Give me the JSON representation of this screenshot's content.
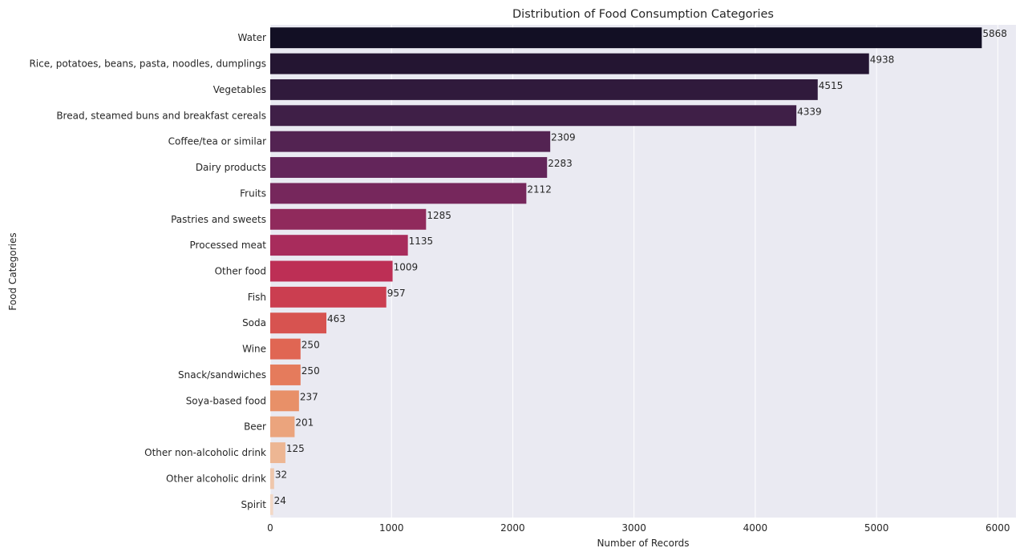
{
  "chart_data": {
    "type": "bar",
    "orientation": "horizontal",
    "title": "Distribution of Food Consumption Categories",
    "xlabel": "Number of Records",
    "ylabel": "Food Categories",
    "xlim": [
      0,
      6150
    ],
    "xticks": [
      0,
      1000,
      2000,
      3000,
      4000,
      5000,
      6000
    ],
    "grid": true,
    "categories": [
      "Water",
      "Rice, potatoes, beans, pasta, noodles, dumplings",
      "Vegetables",
      "Bread, steamed buns and breakfast cereals",
      "Coffee/tea or similar",
      "Dairy products",
      "Fruits",
      "Pastries and sweets",
      "Processed meat",
      "Other food",
      "Fish",
      "Soda",
      "Wine",
      "Snack/sandwiches",
      "Soya-based food",
      "Beer",
      "Other non-alcoholic drink",
      "Other alcoholic drink",
      "Spirit"
    ],
    "values": [
      5868,
      4938,
      4515,
      4339,
      2309,
      2283,
      2112,
      1285,
      1135,
      1009,
      957,
      463,
      250,
      250,
      237,
      201,
      125,
      32,
      24
    ],
    "colors": [
      "#120f24",
      "#241532",
      "#301a3c",
      "#3f1f47",
      "#532352",
      "#63255a",
      "#76275c",
      "#902a5c",
      "#a82c5c",
      "#bd2f55",
      "#cb3e50",
      "#d75350",
      "#e06653",
      "#e57b5c",
      "#e89068",
      "#eba47d",
      "#edb693",
      "#efc7ac",
      "#f2d8c6"
    ],
    "plot_background": "#eaeaf2",
    "grid_color": "#ffffff"
  }
}
